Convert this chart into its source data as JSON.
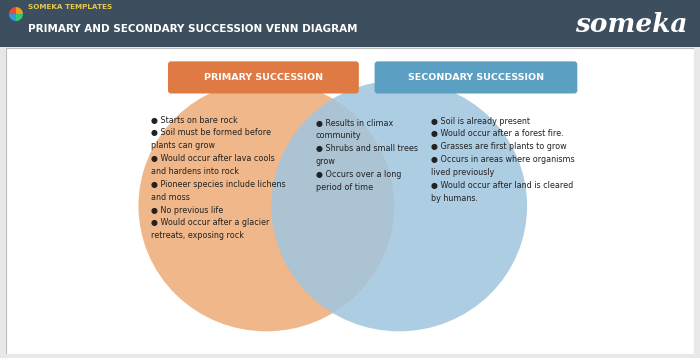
{
  "title": "PRIMARY AND SECONDARY SUCCESSION VENN DIAGRAM",
  "subtitle": "SOMEKA TEMPLATES",
  "brand": "someka",
  "header_bg": "#3d4f5e",
  "header_title_color": "#e8c84a",
  "brand_color": "#ffffff",
  "main_bg": "#e8e8e8",
  "content_bg": "#ffffff",
  "left_label": "PRIMARY SUCCESSION",
  "right_label": "SECONDARY SUCCESSION",
  "left_label_bg": "#e07a45",
  "right_label_bg": "#5b9fc2",
  "left_label_color": "#ffffff",
  "right_label_color": "#ffffff",
  "left_ellipse_color": "#f0b88a",
  "right_ellipse_color": "#9fc5df",
  "left_text": "● Starts on bare rock\n● Soil must be formed before\nplants can grow\n● Would occur after lava cools\nand hardens into rock\n● Pioneer species include lichens\nand moss\n● No previous life\n● Would occur after a glacier\nretreats, exposing rock",
  "center_text": "● Results in climax\ncommunity\n● Shrubs and small trees\ngrow\n● Occurs over a long\nperiod of time",
  "right_text": "● Soil is already present\n● Would occur after a forest fire.\n● Grasses are first plants to grow\n● Occurs in areas where organisms\nlived previously\n● Would occur after land is cleared\nby humans.",
  "text_color": "#222222",
  "text_fontsize": 5.8,
  "label_fontsize": 6.8,
  "logo_colors": [
    "#e74c3c",
    "#f39c12",
    "#2ecc71",
    "#3498db"
  ],
  "logo_angles": [
    90,
    0,
    270,
    180
  ]
}
